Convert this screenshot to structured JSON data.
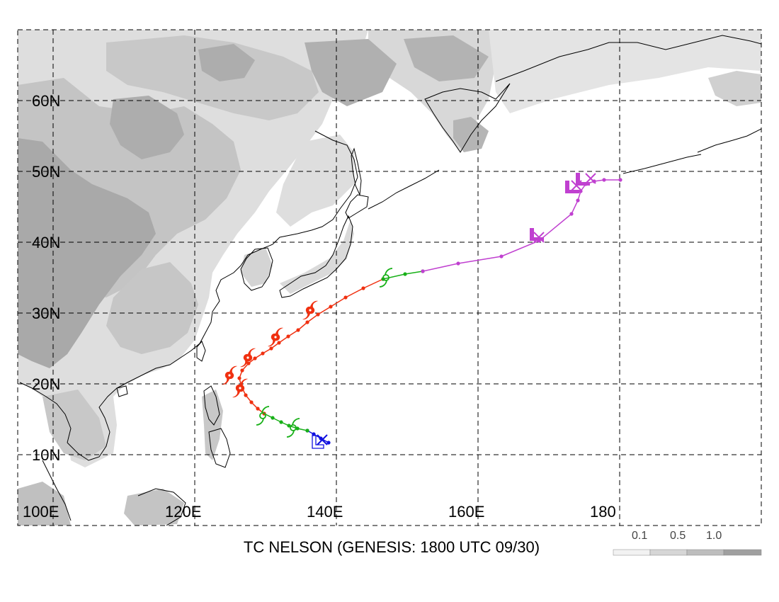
{
  "title": "TC NELSON (GENESIS: 1800 UTC 09/30)",
  "longitude_labels": [
    "100E",
    "120E",
    "140E",
    "160E",
    "180"
  ],
  "latitude_labels": [
    "60N",
    "50N",
    "40N",
    "30N",
    "20N",
    "10N"
  ],
  "legend": {
    "labels": [
      "0.1",
      "0.5",
      "1.0"
    ],
    "colors": [
      "#f2f2f2",
      "#d6d6d6",
      "#bdbdbd",
      "#a0a0a0"
    ]
  },
  "colors": {
    "land_light": "#dedede",
    "land_mid": "#c4c4c4",
    "land_dark": "#a9a9a9",
    "track_blue": "#1010e0",
    "track_green": "#18b018",
    "track_red": "#f03010",
    "track_magenta": "#c040d0"
  },
  "track": {
    "segments": [
      {
        "stage": "blue",
        "points": [
          [
            138.9,
            11.7
          ],
          [
            137.8,
            12.3
          ],
          [
            136.8,
            12.9
          ],
          [
            135.9,
            13.4
          ]
        ]
      },
      {
        "stage": "green",
        "points": [
          [
            135.9,
            13.4
          ],
          [
            134.5,
            13.7
          ],
          [
            133.3,
            14.1
          ],
          [
            132.2,
            14.6
          ],
          [
            131.0,
            15.2
          ],
          [
            129.8,
            15.8
          ]
        ]
      },
      {
        "stage": "red",
        "points": [
          [
            129.8,
            15.8
          ],
          [
            128.9,
            16.5
          ],
          [
            128.0,
            17.4
          ],
          [
            127.2,
            18.4
          ],
          [
            126.6,
            19.6
          ],
          [
            126.3,
            20.8
          ],
          [
            126.7,
            21.9
          ],
          [
            127.6,
            22.9
          ],
          [
            128.5,
            23.6
          ],
          [
            129.6,
            24.3
          ],
          [
            130.8,
            25.0
          ],
          [
            131.9,
            25.8
          ],
          [
            133.2,
            26.7
          ],
          [
            134.6,
            27.6
          ],
          [
            135.9,
            28.7
          ],
          [
            137.4,
            29.8
          ],
          [
            139.2,
            30.9
          ],
          [
            141.3,
            32.2
          ],
          [
            143.8,
            33.5
          ],
          [
            146.6,
            34.8
          ]
        ]
      },
      {
        "stage": "green",
        "points": [
          [
            146.6,
            34.8
          ],
          [
            149.7,
            35.5
          ],
          [
            152.2,
            35.9
          ]
        ]
      },
      {
        "stage": "magenta",
        "points": [
          [
            152.2,
            35.9
          ],
          [
            157.2,
            37.0
          ],
          [
            163.3,
            38.0
          ],
          [
            168.6,
            40.2
          ],
          [
            173.2,
            44.0
          ],
          [
            174.1,
            45.9
          ],
          [
            174.5,
            47.2
          ],
          [
            175.2,
            48.2
          ],
          [
            176.4,
            48.6
          ],
          [
            177.8,
            48.8
          ],
          [
            180.1,
            48.8
          ]
        ]
      }
    ],
    "symbols": [
      {
        "type": "x",
        "stage": "blue",
        "lon": 138.0,
        "lat": 12.1
      },
      {
        "type": "L",
        "stage": "blue",
        "lon": 137.6,
        "lat": 11.5
      },
      {
        "type": "storm",
        "stage": "green",
        "lon": 133.9,
        "lat": 13.8
      },
      {
        "type": "storm",
        "stage": "green",
        "lon": 129.6,
        "lat": 15.5
      },
      {
        "type": "typhoon",
        "stage": "red",
        "lon": 126.4,
        "lat": 19.4
      },
      {
        "type": "typhoon",
        "stage": "red",
        "lon": 124.9,
        "lat": 21.2
      },
      {
        "type": "typhoon",
        "stage": "red",
        "lon": 127.5,
        "lat": 23.7
      },
      {
        "type": "typhoon",
        "stage": "red",
        "lon": 131.4,
        "lat": 26.6
      },
      {
        "type": "typhoon",
        "stage": "red",
        "lon": 136.3,
        "lat": 30.4
      },
      {
        "type": "storm",
        "stage": "green",
        "lon": 147.0,
        "lat": 35.0
      },
      {
        "type": "x",
        "stage": "magenta",
        "lon": 168.6,
        "lat": 40.7
      },
      {
        "type": "L",
        "stage": "magenta",
        "lon": 168.3,
        "lat": 40.8
      },
      {
        "type": "x",
        "stage": "magenta",
        "lon": 173.9,
        "lat": 48.0
      },
      {
        "type": "L",
        "stage": "magenta",
        "lon": 173.3,
        "lat": 47.5
      },
      {
        "type": "x",
        "stage": "magenta",
        "lon": 175.9,
        "lat": 49.0
      },
      {
        "type": "L",
        "stage": "magenta",
        "lon": 174.8,
        "lat": 48.6
      }
    ]
  }
}
